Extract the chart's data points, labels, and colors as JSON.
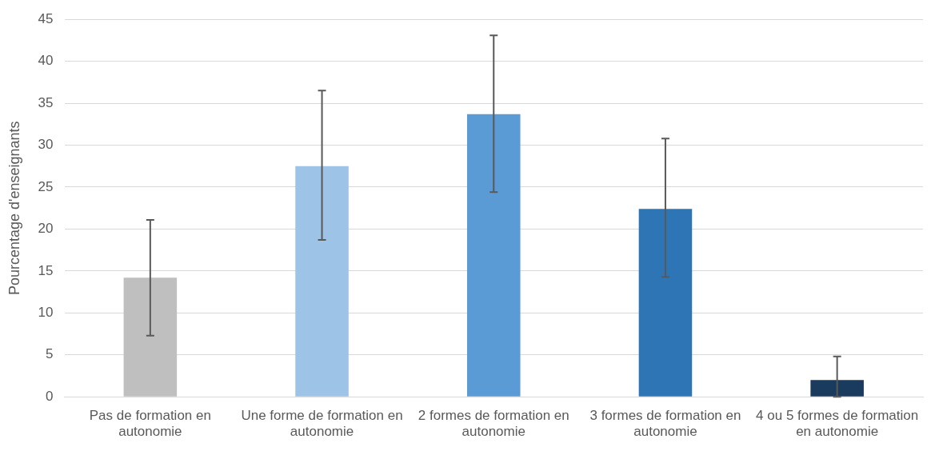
{
  "chart_data": {
    "type": "bar",
    "ylabel": "Pourcentage d'enseignants",
    "categories": [
      "Pas de formation en autonomie",
      "Une forme de formation en autonomie",
      "2 formes de formation en autonomie",
      "3 formes de formation en autonomie",
      "4 ou 5 formes de formation en autonomie"
    ],
    "values": [
      14.2,
      27.5,
      33.7,
      22.4,
      2.0
    ],
    "colors": [
      "#bfbfbf",
      "#9dc3e6",
      "#5b9bd5",
      "#2e75b6",
      "#1a3a5e"
    ],
    "errors": [
      [
        7.3,
        21.1
      ],
      [
        18.7,
        36.5
      ],
      [
        24.4,
        43.1
      ],
      [
        14.3,
        30.8
      ],
      [
        0,
        4.8
      ]
    ],
    "ylim": [
      0,
      45
    ],
    "yticks": [
      0,
      5,
      10,
      15,
      20,
      25,
      30,
      35,
      40,
      45
    ],
    "grid": "y",
    "legend": false
  }
}
